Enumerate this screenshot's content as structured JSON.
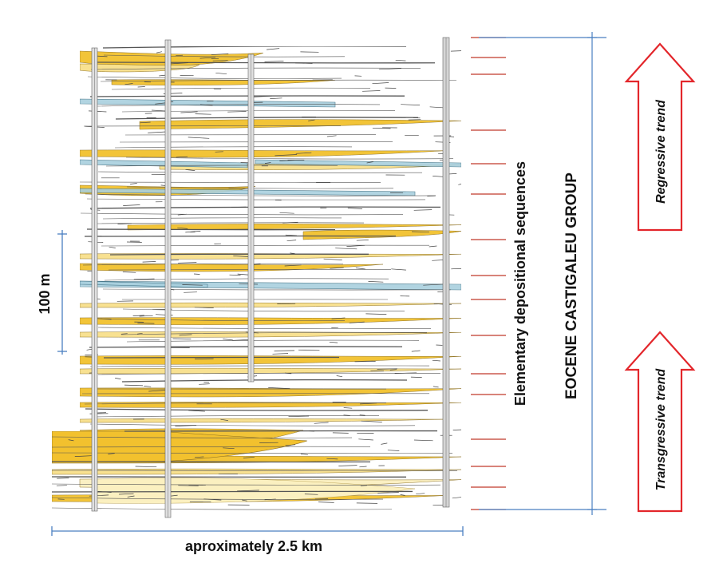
{
  "labels": {
    "scale_vertical": "100 m",
    "scale_horizontal": "aproximately 2.5 km",
    "sequences": "Elementary depositional sequences",
    "group": "EOCENE CASTIGALEU GROUP",
    "regressive": "Regressive trend",
    "transgressive": "Transgressive trend"
  },
  "colors": {
    "sand_yellow": "#f2c12e",
    "sand_light": "#f8e08c",
    "sand_pale": "#fbf0c0",
    "carbonate_blue": "#a9d0de",
    "shale_line": "#555555",
    "sequence_marker": "#c0392b",
    "scale_blue": "#4a7fc1",
    "arrow_red": "#e3262b",
    "well_gray": "#cfcfcf"
  }
}
